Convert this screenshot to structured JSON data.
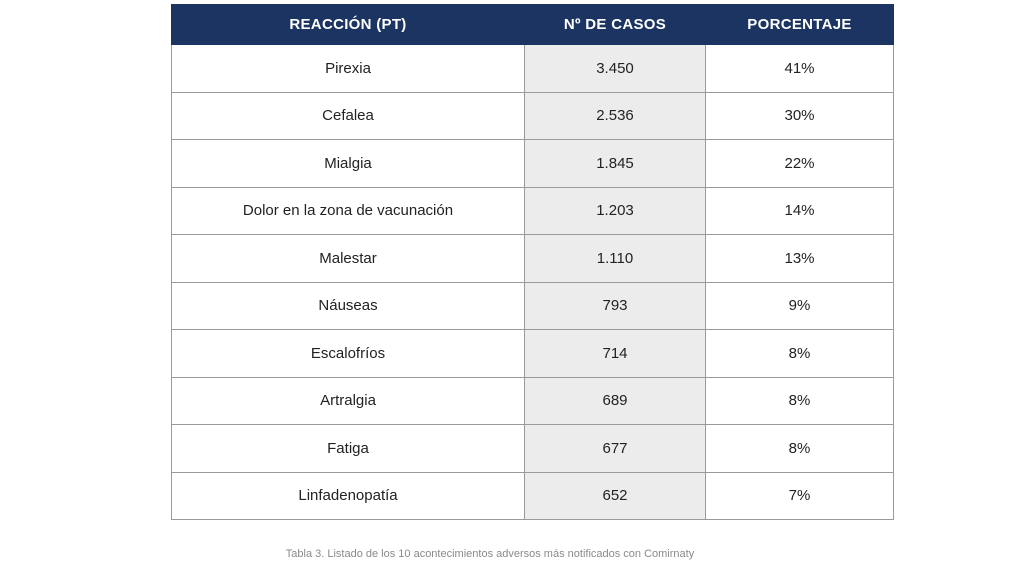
{
  "table": {
    "headers": [
      "REACCIÓN (PT)",
      "Nº DE CASOS",
      "PORCENTAJE"
    ],
    "rows": [
      [
        "Pirexia",
        "3.450",
        "41%"
      ],
      [
        "Cefalea",
        "2.536",
        "30%"
      ],
      [
        "Mialgia",
        "1.845",
        "22%"
      ],
      [
        "Dolor en la zona de vacunación",
        "1.203",
        "14%"
      ],
      [
        "Malestar",
        "1.110",
        "13%"
      ],
      [
        "Náuseas",
        "793",
        "9%"
      ],
      [
        "Escalofríos",
        "714",
        "8%"
      ],
      [
        "Artralgia",
        "689",
        "8%"
      ],
      [
        "Fatiga",
        "677",
        "8%"
      ],
      [
        "Linfadenopatía",
        "652",
        "7%"
      ]
    ]
  },
  "caption": "Tabla 3. Listado de los 10 acontecimientos adversos más notificados con Comirnaty",
  "colors": {
    "header_bg": "#1b3461",
    "count_column_bg": "#ececec"
  }
}
